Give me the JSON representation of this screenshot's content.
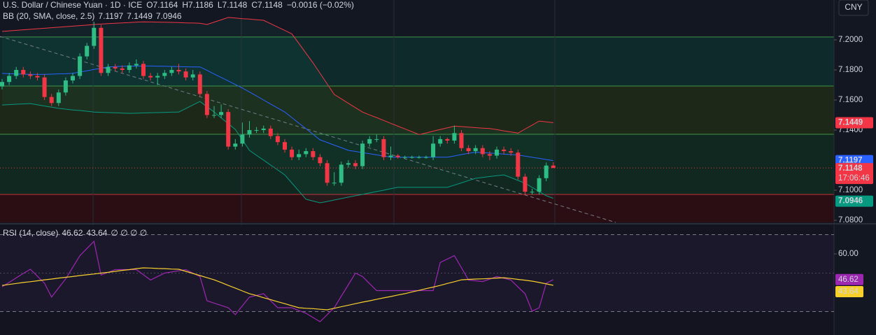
{
  "currency": "CNY",
  "chart_data": [
    {
      "type": "candlestick",
      "title": "U.S. Dollar / Chinese Yuan · 1D · ICE",
      "ohlc_labels": [
        "O",
        "H",
        "L",
        "C"
      ],
      "change": "−0.0016 (−0.02%)",
      "countdown": "17:06:46",
      "colors": {
        "up": "#2ebd85",
        "down": "#f23645"
      },
      "ohlc": {
        "open": [
          7.169,
          7.172,
          7.176,
          7.18,
          7.177,
          7.176,
          7.175,
          7.162,
          7.158,
          7.165,
          7.173,
          7.176,
          7.189,
          7.196,
          7.208,
          7.178,
          7.182,
          7.181,
          7.18,
          7.183,
          7.184,
          7.176,
          7.175,
          7.176,
          7.178,
          7.18,
          7.179,
          7.175,
          7.177,
          7.164,
          7.15,
          7.15,
          7.152,
          7.129,
          7.131,
          7.137,
          7.14,
          7.14,
          7.141,
          7.136,
          7.132,
          7.127,
          7.122,
          7.124,
          7.126,
          7.122,
          7.118,
          7.105,
          7.105,
          7.117,
          7.118,
          7.116,
          7.131,
          7.134,
          7.134,
          7.122,
          7.123,
          7.122,
          7.122,
          7.122,
          7.122,
          7.122,
          7.131,
          7.134,
          7.133,
          7.138,
          7.128,
          7.126,
          7.128,
          7.124,
          7.123,
          7.127,
          7.126,
          7.125,
          7.109,
          7.099,
          7.099,
          7.108,
          7.1164
        ],
        "high": [
          7.174,
          7.178,
          7.182,
          7.182,
          7.179,
          7.178,
          7.177,
          7.164,
          7.167,
          7.175,
          7.178,
          7.191,
          7.198,
          7.212,
          7.21,
          7.184,
          7.184,
          7.183,
          7.185,
          7.187,
          7.186,
          7.178,
          7.178,
          7.18,
          7.182,
          7.184,
          7.181,
          7.18,
          7.179,
          7.166,
          7.156,
          7.157,
          7.154,
          7.134,
          7.145,
          7.146,
          7.142,
          7.143,
          7.143,
          7.138,
          7.134,
          7.129,
          7.127,
          7.128,
          7.128,
          7.124,
          7.12,
          7.112,
          7.119,
          7.12,
          7.12,
          7.133,
          7.136,
          7.137,
          7.136,
          7.129,
          7.124,
          7.123,
          7.123,
          7.123,
          7.123,
          7.136,
          7.136,
          7.135,
          7.143,
          7.14,
          7.13,
          7.13,
          7.13,
          7.126,
          7.129,
          7.129,
          7.128,
          7.127,
          7.111,
          7.101,
          7.11,
          7.1184,
          7.1186
        ],
        "low": [
          7.167,
          7.17,
          7.174,
          7.175,
          7.174,
          7.173,
          7.16,
          7.156,
          7.156,
          7.163,
          7.171,
          7.174,
          7.187,
          7.194,
          7.176,
          7.176,
          7.179,
          7.178,
          7.178,
          7.181,
          7.174,
          7.173,
          7.17,
          7.174,
          7.176,
          7.177,
          7.173,
          7.173,
          7.162,
          7.148,
          7.148,
          7.148,
          7.127,
          7.127,
          7.129,
          7.135,
          7.138,
          7.138,
          7.134,
          7.13,
          7.125,
          7.12,
          7.12,
          7.122,
          7.12,
          7.116,
          7.103,
          7.103,
          7.103,
          7.115,
          7.114,
          7.114,
          7.129,
          7.132,
          7.12,
          7.12,
          7.121,
          7.121,
          7.121,
          7.121,
          7.121,
          7.12,
          7.129,
          7.131,
          7.131,
          7.126,
          7.124,
          7.124,
          7.122,
          7.12,
          7.121,
          7.124,
          7.123,
          7.107,
          7.097,
          7.097,
          7.097,
          7.106,
          7.1148
        ],
        "close": [
          7.172,
          7.176,
          7.18,
          7.177,
          7.176,
          7.175,
          7.162,
          7.158,
          7.165,
          7.173,
          7.176,
          7.189,
          7.196,
          7.208,
          7.178,
          7.182,
          7.181,
          7.18,
          7.183,
          7.184,
          7.176,
          7.175,
          7.176,
          7.178,
          7.18,
          7.179,
          7.175,
          7.177,
          7.164,
          7.15,
          7.15,
          7.152,
          7.129,
          7.131,
          7.137,
          7.14,
          7.14,
          7.141,
          7.136,
          7.132,
          7.127,
          7.122,
          7.124,
          7.126,
          7.122,
          7.118,
          7.105,
          7.105,
          7.117,
          7.118,
          7.116,
          7.131,
          7.134,
          7.134,
          7.122,
          7.123,
          7.122,
          7.122,
          7.122,
          7.122,
          7.122,
          7.131,
          7.134,
          7.133,
          7.138,
          7.128,
          7.126,
          7.128,
          7.124,
          7.123,
          7.127,
          7.126,
          7.125,
          7.109,
          7.099,
          7.099,
          7.108,
          7.1164,
          7.1148
        ]
      },
      "indicator": {
        "name": "BB (20, SMA, close, 2.5)",
        "series": [
          {
            "color": "#2962ff",
            "values": [
              7.1777,
              7.1775,
              7.1773,
              7.1772,
              7.1771,
              7.177,
              7.1771,
              7.1772,
              7.1774,
              7.1775,
              7.1777,
              7.1786,
              7.1794,
              7.1803,
              7.1811,
              7.182,
              7.1822,
              7.1824,
              7.1825,
              7.1826,
              7.1826,
              7.1826,
              7.1825,
              7.1824,
              7.1823,
              7.1822,
              7.1821,
              7.182,
              7.182,
              7.1797,
              7.1773,
              7.175,
              7.1727,
              7.1703,
              7.168,
              7.1653,
              7.1627,
              7.16,
              7.1573,
              7.1547,
              7.152,
              7.1483,
              7.1446,
              7.1409,
              7.1372,
              7.1335,
              7.1318,
              7.13,
              7.1283,
              7.1265,
              7.1258,
              7.125,
              7.1243,
              7.1235,
              7.1228,
              7.122,
              7.122,
              7.122,
              7.122,
              7.122,
              7.122,
              7.122,
              7.122,
              7.122,
              7.1228,
              7.1237,
              7.1245,
              7.1253,
              7.125,
              7.1247,
              7.1244,
              7.124,
              7.1237,
              7.1234,
              7.1227,
              7.1219,
              7.1212,
              7.1204,
              7.1197
            ]
          },
          {
            "color": "#f23645",
            "values": [
              7.2056,
              7.206,
              7.2063,
              7.2067,
              7.207,
              7.2074,
              7.2077,
              7.2081,
              7.2084,
              7.2088,
              7.2091,
              7.2095,
              7.2098,
              7.2102,
              7.2105,
              7.2108,
              7.211,
              7.2113,
              7.2115,
              7.2118,
              7.212,
              7.2119,
              7.2118,
              7.2117,
              7.2116,
              7.2115,
              7.2113,
              7.2112,
              7.211,
              7.2102,
              7.2118,
              7.2133,
              7.2149,
              7.2145,
              7.2141,
              7.2138,
              7.2134,
              7.213,
              7.2108,
              7.2085,
              7.2063,
              7.204,
              7.1976,
              7.1911,
              7.1847,
              7.1777,
              7.1707,
              7.1637,
              7.1608,
              7.1578,
              7.1549,
              7.152,
              7.1501,
              7.1483,
              7.1464,
              7.1445,
              7.1426,
              7.1408,
              7.1389,
              7.137,
              7.1381,
              7.1393,
              7.1404,
              7.1415,
              7.1426,
              7.1423,
              7.142,
              7.1416,
              7.1413,
              7.141,
              7.1403,
              7.1395,
              7.1388,
              7.138,
              7.1407,
              7.1433,
              7.146,
              7.1455,
              7.1449
            ]
          },
          {
            "color": "#089981",
            "values": [
              7.1567,
              7.1569,
              7.1572,
              7.1574,
              7.1576,
              7.1568,
              7.156,
              7.1552,
              7.1544,
              7.1539,
              7.1534,
              7.153,
              7.1525,
              7.152,
              7.1518,
              7.1516,
              7.1515,
              7.1513,
              7.1511,
              7.1512,
              7.1514,
              7.1515,
              7.1516,
              7.1517,
              7.1519,
              7.152,
              7.1543,
              7.1567,
              7.159,
              7.1555,
              7.152,
              7.1481,
              7.1443,
              7.1404,
              7.1335,
              7.1265,
              7.1232,
              7.12,
              7.1167,
              7.1135,
              7.1102,
              7.1048,
              7.0994,
              7.094,
              7.0928,
              7.0916,
              7.0925,
              7.0935,
              7.0944,
              7.0954,
              7.0963,
              7.0972,
              7.0982,
              7.0991,
              7.1,
              7.101,
              7.1019,
              7.1019,
              7.1019,
              7.1019,
              7.1019,
              7.1019,
              7.1019,
              7.1019,
              7.1034,
              7.1049,
              7.1064,
              7.1079,
              7.1085,
              7.1091,
              7.1096,
              7.1102,
              7.1084,
              7.1065,
              7.1047,
              7.1019,
              7.0991,
              7.0963,
              7.0946
            ]
          }
        ]
      },
      "levels": [
        7.2019,
        7.1693,
        7.1372,
        7.0972
      ],
      "ylim": [
        7.0786,
        7.2265
      ],
      "yticks": [
        {
          "value": 7.2,
          "label": "7.2000"
        },
        {
          "value": 7.18,
          "label": "7.1800"
        },
        {
          "value": 7.16,
          "label": "7.1600"
        },
        {
          "value": 7.14,
          "label": "7.1400"
        },
        {
          "value": 7.1,
          "label": "7.1000"
        },
        {
          "value": 7.08,
          "label": "7.0800"
        }
      ]
    },
    {
      "type": "line",
      "title": "RSI (14, close)",
      "legend_extra": "∅ ∅ ∅ ∅",
      "series": [
        {
          "color": "#9c27b0",
          "values": [
            42.9,
            45.2,
            47.5,
            49.8,
            52.0,
            48.4,
            44.7,
            37.5,
            42.3,
            47.0,
            53.0,
            59.0,
            62.8,
            66.5,
            49.0,
            50.4,
            51.8,
            51.8,
            51.8,
            51.8,
            49.1,
            46.4,
            48.2,
            50.0,
            50.6,
            51.2,
            51.8,
            50.0,
            48.2,
            35.6,
            34.4,
            33.2,
            32.0,
            28.4,
            33.0,
            37.5,
            38.4,
            39.3,
            35.6,
            32.0,
            32.0,
            32.0,
            30.5,
            29.1,
            26.9,
            24.7,
            28.4,
            32.0,
            38.0,
            44.0,
            50.0,
            48.2,
            44.5,
            40.9,
            40.9,
            40.9,
            40.9,
            40.9,
            40.9,
            40.9,
            40.9,
            40.9,
            55.5,
            57.3,
            59.1,
            52.8,
            46.4,
            46.0,
            45.6,
            46.9,
            48.2,
            47.3,
            46.4,
            42.8,
            39.3,
            30.2,
            32.0,
            44.7,
            46.62
          ]
        },
        {
          "color": "#f7d02c",
          "values": [
            43.6,
            44.1,
            44.6,
            45.1,
            45.5,
            46.0,
            46.5,
            46.9,
            47.4,
            47.8,
            48.2,
            48.7,
            49.1,
            49.5,
            50.0,
            50.4,
            50.9,
            51.4,
            51.8,
            52.3,
            52.7,
            52.6,
            52.4,
            52.3,
            52.1,
            52.0,
            50.9,
            49.8,
            48.7,
            47.6,
            46.5,
            45.1,
            43.6,
            42.2,
            40.7,
            39.3,
            38.3,
            37.2,
            36.2,
            35.1,
            34.1,
            33.0,
            32.0,
            31.7,
            31.5,
            31.2,
            30.9,
            31.7,
            32.5,
            33.3,
            34.1,
            34.9,
            35.6,
            36.4,
            37.1,
            37.8,
            38.6,
            39.3,
            40.2,
            41.0,
            41.9,
            42.7,
            43.6,
            44.6,
            45.5,
            46.5,
            46.7,
            46.9,
            47.0,
            47.2,
            47.4,
            47.6,
            47.2,
            46.7,
            46.3,
            45.8,
            45.1,
            44.4,
            43.64
          ]
        }
      ],
      "bands": [
        70,
        50,
        30
      ],
      "ylim": [
        17.8,
        74.9
      ],
      "yticks": [
        {
          "value": 60,
          "label": "60.00"
        }
      ]
    }
  ]
}
